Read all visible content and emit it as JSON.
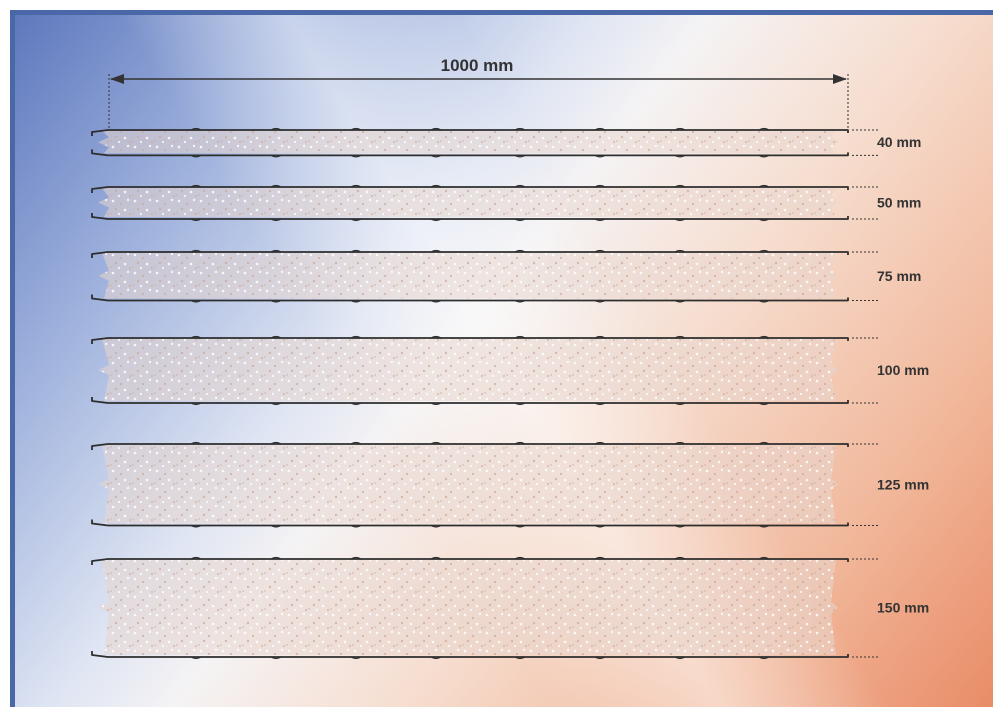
{
  "width_dimension": {
    "label": "1000 mm"
  },
  "panels": [
    {
      "thickness_mm": 40,
      "label": "40 mm"
    },
    {
      "thickness_mm": 50,
      "label": "50 mm"
    },
    {
      "thickness_mm": 75,
      "label": "75 mm"
    },
    {
      "thickness_mm": 100,
      "label": "100 mm"
    },
    {
      "thickness_mm": 125,
      "label": "125 mm"
    },
    {
      "thickness_mm": 150,
      "label": "150 mm"
    }
  ],
  "colors": {
    "frame": "#4a67a8",
    "background_cool": "#5e78bd",
    "background_warm": "#e98c67",
    "outline": "#2e2e2e",
    "foam_dots": "#c9a898"
  }
}
